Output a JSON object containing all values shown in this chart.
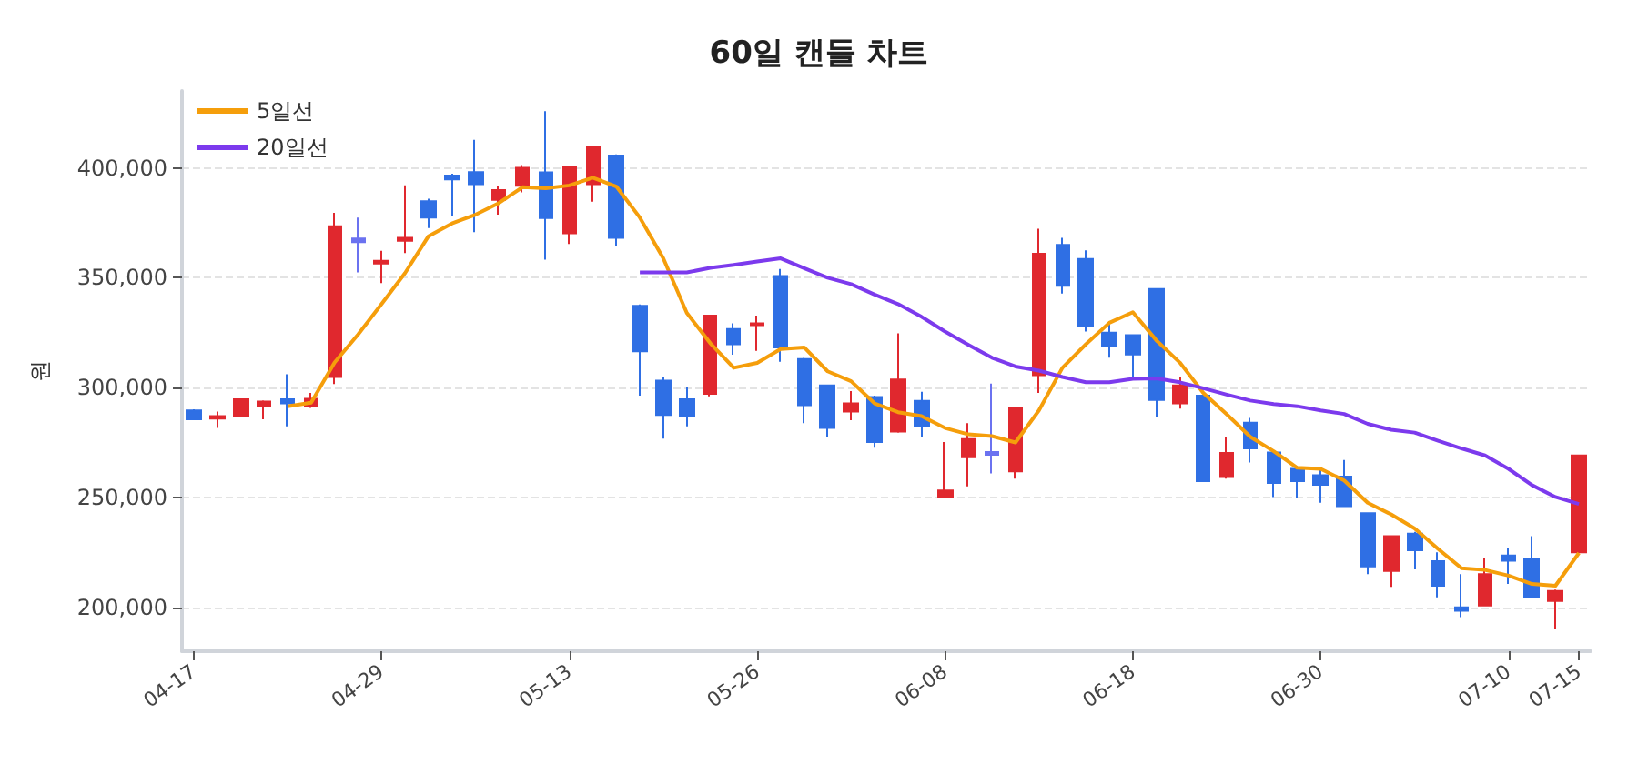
{
  "chart_data": {
    "type": "candlestick",
    "title": "60일 캔들 차트",
    "ylabel": "원",
    "categories": [
      "04-17",
      null,
      null,
      null,
      null,
      null,
      null,
      null,
      "04-29",
      null,
      null,
      null,
      null,
      null,
      null,
      null,
      "05-13",
      null,
      null,
      null,
      null,
      null,
      null,
      null,
      "05-26",
      null,
      null,
      null,
      null,
      null,
      null,
      null,
      "06-08",
      null,
      null,
      null,
      null,
      null,
      null,
      null,
      "06-18",
      null,
      null,
      null,
      null,
      null,
      null,
      null,
      "06-30",
      null,
      null,
      null,
      null,
      null,
      null,
      null,
      "07-10",
      null,
      null,
      "07-15"
    ],
    "ohlc": [
      [
        289600,
        290100,
        285100,
        285600
      ],
      [
        285900,
        289100,
        281600,
        287000
      ],
      [
        287000,
        294900,
        286700,
        294700
      ],
      [
        291700,
        294100,
        285600,
        293600
      ],
      [
        294700,
        306100,
        282400,
        292800
      ],
      [
        291500,
        297600,
        290700,
        294900
      ],
      [
        304800,
        379500,
        301600,
        373400
      ],
      [
        367800,
        377400,
        352400,
        366200
      ],
      [
        356400,
        362200,
        347600,
        357700
      ],
      [
        366800,
        392000,
        361200,
        368100
      ],
      [
        384800,
        385900,
        372600,
        377400
      ],
      [
        396500,
        397300,
        378200,
        394700
      ],
      [
        398100,
        412800,
        370700,
        392600
      ],
      [
        385400,
        391500,
        378700,
        389900
      ],
      [
        391800,
        401300,
        388800,
        400000
      ],
      [
        397900,
        425800,
        358200,
        377100
      ],
      [
        370200,
        400800,
        365400,
        400500
      ],
      [
        392600,
        410100,
        384600,
        409800
      ],
      [
        405600,
        406100,
        364600,
        368100
      ],
      [
        337200,
        337800,
        296300,
        316500
      ],
      [
        303200,
        305000,
        276800,
        287500
      ],
      [
        294700,
        300000,
        282400,
        287000
      ],
      [
        297100,
        333200,
        296000,
        332700
      ],
      [
        326600,
        329200,
        314900,
        319700
      ],
      [
        328400,
        332700,
        316700,
        329200
      ],
      [
        350800,
        354000,
        311700,
        318300
      ],
      [
        313000,
        313500,
        283800,
        292000
      ],
      [
        301000,
        301300,
        277400,
        281600
      ],
      [
        289100,
        298400,
        285100,
        292800
      ],
      [
        295700,
        296300,
        272600,
        275200
      ],
      [
        280000,
        324700,
        279500,
        303700
      ],
      [
        293900,
        298100,
        277600,
        282400
      ],
      [
        250000,
        275200,
        250000,
        253200
      ],
      [
        268300,
        283800,
        255000,
        276600
      ],
      [
        270700,
        301800,
        260900,
        269400
      ],
      [
        261900,
        291000,
        258500,
        290700
      ],
      [
        305600,
        372300,
        297600,
        360900
      ],
      [
        364900,
        368100,
        342800,
        346300
      ],
      [
        358500,
        362500,
        325500,
        328200
      ],
      [
        325000,
        329500,
        313600,
        318900
      ],
      [
        323900,
        324200,
        304200,
        315100
      ],
      [
        344900,
        345200,
        286400,
        294400
      ],
      [
        292800,
        305000,
        290400,
        301000
      ],
      [
        296300,
        296500,
        257200,
        257400
      ],
      [
        259300,
        277600,
        258500,
        270200
      ],
      [
        284000,
        286200,
        265900,
        272300
      ],
      [
        270500,
        271000,
        250200,
        256600
      ],
      [
        263000,
        264300,
        250000,
        257400
      ],
      [
        260100,
        263800,
        247600,
        255800
      ],
      [
        259500,
        267000,
        245700,
        246000
      ],
      [
        242800,
        243100,
        215100,
        218600
      ],
      [
        216500,
        232700,
        209300,
        232400
      ],
      [
        233500,
        234300,
        217300,
        226000
      ],
      [
        221000,
        225000,
        204500,
        209800
      ],
      [
        200000,
        215100,
        195500,
        198400
      ],
      [
        200800,
        222600,
        200500,
        215100
      ],
      [
        223600,
        227100,
        210600,
        221200
      ],
      [
        221800,
        232400,
        204500,
        204800
      ],
      [
        202900,
        208000,
        189900,
        207400
      ],
      [
        225000,
        269400,
        224700,
        269100
      ]
    ],
    "colors": [
      "#2f6fe4",
      "#e0282e",
      "#e0282e",
      "#e0282e",
      "#2f6fe4",
      "#e0282e",
      "#e0282e",
      "#6b72f0",
      "#e0282e",
      "#e0282e",
      "#2f6fe4",
      "#2f6fe4",
      "#2f6fe4",
      "#e0282e",
      "#e0282e",
      "#2f6fe4",
      "#e0282e",
      "#e0282e",
      "#2f6fe4",
      "#2f6fe4",
      "#2f6fe4",
      "#2f6fe4",
      "#e0282e",
      "#2f6fe4",
      "#e0282e",
      "#2f6fe4",
      "#2f6fe4",
      "#2f6fe4",
      "#e0282e",
      "#2f6fe4",
      "#e0282e",
      "#2f6fe4",
      "#e0282e",
      "#e0282e",
      "#6b72f0",
      "#e0282e",
      "#e0282e",
      "#2f6fe4",
      "#2f6fe4",
      "#2f6fe4",
      "#2f6fe4",
      "#2f6fe4",
      "#e0282e",
      "#2f6fe4",
      "#e0282e",
      "#2f6fe4",
      "#2f6fe4",
      "#2f6fe4",
      "#2f6fe4",
      "#2f6fe4",
      "#2f6fe4",
      "#e0282e",
      "#2f6fe4",
      "#2f6fe4",
      "#2f6fe4",
      "#e0282e",
      "#2f6fe4",
      "#2f6fe4",
      "#e0282e",
      "#e0282e"
    ],
    "series": [
      {
        "name": "5일선",
        "type": "line",
        "color": "#f59e0b",
        "values": [
          null,
          null,
          null,
          null,
          291500,
          293100,
          311400,
          324200,
          338000,
          352100,
          368900,
          374700,
          378700,
          384000,
          391200,
          390700,
          392000,
          395500,
          391500,
          377400,
          358800,
          334000,
          320200,
          309000,
          311200,
          317500,
          318300,
          307400,
          302900,
          292800,
          288800,
          287000,
          281600,
          278700,
          277900,
          275000,
          289600,
          309000,
          319700,
          329500,
          334300,
          321500,
          311400,
          297600,
          287800,
          277600,
          271000,
          263500,
          263000,
          257700,
          247600,
          242300,
          235900,
          226600,
          217800,
          217000,
          214400,
          210600,
          209800,
          224700
        ]
      },
      {
        "name": "20일선",
        "type": "line",
        "color": "#7c3aed",
        "values": [
          null,
          null,
          null,
          null,
          null,
          null,
          null,
          null,
          null,
          null,
          null,
          null,
          null,
          null,
          null,
          null,
          null,
          null,
          null,
          352400,
          352400,
          352400,
          354500,
          355800,
          357400,
          358800,
          354300,
          350000,
          347100,
          342300,
          338000,
          332200,
          325500,
          319400,
          313600,
          309600,
          307700,
          304800,
          302400,
          302400,
          304000,
          304200,
          302400,
          299700,
          296800,
          294100,
          292500,
          291500,
          289600,
          288000,
          283500,
          280800,
          279500,
          275800,
          272300,
          269100,
          263000,
          255600,
          250200,
          247000
        ]
      }
    ],
    "ylim": [
      180000,
      435000
    ],
    "yticks": [
      {
        "value": 200000,
        "label": "200,000"
      },
      {
        "value": 250000,
        "label": "250,000"
      },
      {
        "value": 300000,
        "label": "300,000"
      },
      {
        "value": 350000,
        "label": "350,000"
      },
      {
        "value": 400000,
        "label": "400,000"
      }
    ],
    "grid": "y",
    "legend": "top left",
    "marker": "none"
  }
}
